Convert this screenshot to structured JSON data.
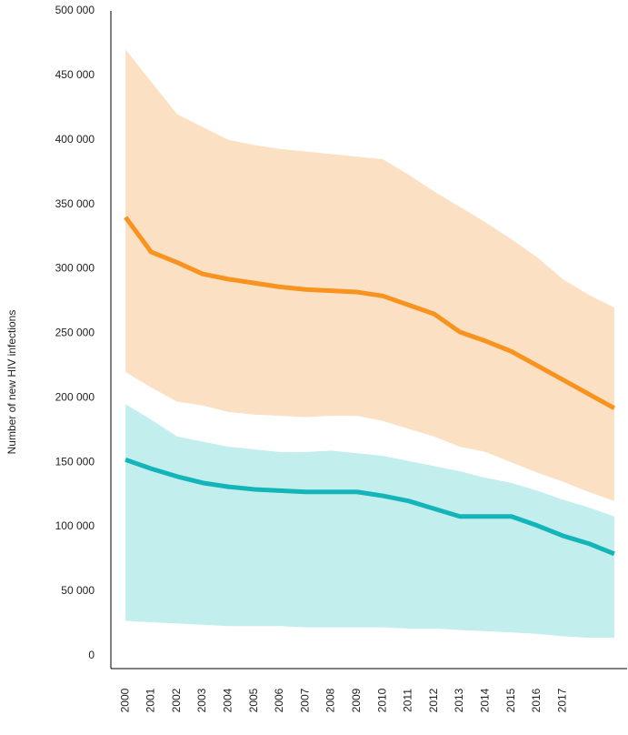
{
  "chart_data": {
    "type": "line",
    "y_label": "Number of new HIV infections",
    "x": [
      2000,
      2001,
      2002,
      2003,
      2004,
      2005,
      2006,
      2007,
      2008,
      2009,
      2010,
      2011,
      2012,
      2013,
      2014,
      2015,
      2016,
      2017,
      2018,
      2019
    ],
    "xlim": [
      1999.43,
      2019.5
    ],
    "xticks": [
      2000,
      2001,
      2002,
      2003,
      2004,
      2005,
      2006,
      2007,
      2008,
      2009,
      2010,
      2011,
      2012,
      2013,
      2014,
      2015,
      2016,
      2017
    ],
    "ylim": [
      -10000,
      500000
    ],
    "yticks": [
      0,
      {
        "value": 50000,
        "label": "50 000"
      },
      {
        "value": 100000,
        "label": "100 000"
      },
      {
        "value": 150000,
        "label": "150 000"
      },
      {
        "value": 200000,
        "label": "200 000"
      },
      {
        "value": 250000,
        "label": "250 000"
      },
      {
        "value": 300000,
        "label": "300 000"
      },
      {
        "value": 350000,
        "label": "350 000"
      },
      {
        "value": 400000,
        "label": "400 000"
      },
      {
        "value": 450000,
        "label": "450 000"
      },
      {
        "value": 500000,
        "label": "500 000"
      }
    ],
    "grid": false,
    "series": [
      {
        "color": "#f7931e",
        "band_color": "#fce0c4",
        "values": [
          340000,
          313000,
          305000,
          296000,
          292000,
          289000,
          286000,
          284000,
          283000,
          282000,
          279000,
          272000,
          265000,
          251000,
          244000,
          236000,
          225000,
          214000,
          203000,
          192000
        ],
        "upper": [
          470000,
          445000,
          420000,
          410000,
          400000,
          396000,
          393000,
          391000,
          389000,
          387000,
          385000,
          373000,
          360000,
          348000,
          336000,
          323000,
          309000,
          292000,
          280000,
          270000
        ],
        "lower": [
          220000,
          208000,
          197000,
          194000,
          189000,
          187000,
          186000,
          185000,
          186000,
          186000,
          182000,
          176000,
          170000,
          162000,
          158000,
          150000,
          142000,
          135000,
          127000,
          120000
        ]
      },
      {
        "color": "#13b5b8",
        "band_color": "#c2eeee",
        "values": [
          152000,
          145000,
          139000,
          134000,
          131000,
          129000,
          128000,
          127000,
          127000,
          127000,
          124000,
          120000,
          114000,
          108000,
          108000,
          108000,
          101000,
          93000,
          87000,
          79000
        ],
        "upper": [
          195000,
          183000,
          170000,
          166000,
          162000,
          160000,
          158000,
          158000,
          159000,
          157000,
          155000,
          151000,
          147000,
          143000,
          138000,
          134000,
          128000,
          121000,
          115000,
          108000
        ],
        "lower": [
          27000,
          26000,
          25000,
          24000,
          23000,
          23000,
          23000,
          22000,
          22000,
          22000,
          22000,
          21000,
          21000,
          20000,
          19000,
          18000,
          17000,
          15000,
          14000,
          14000
        ]
      }
    ]
  }
}
